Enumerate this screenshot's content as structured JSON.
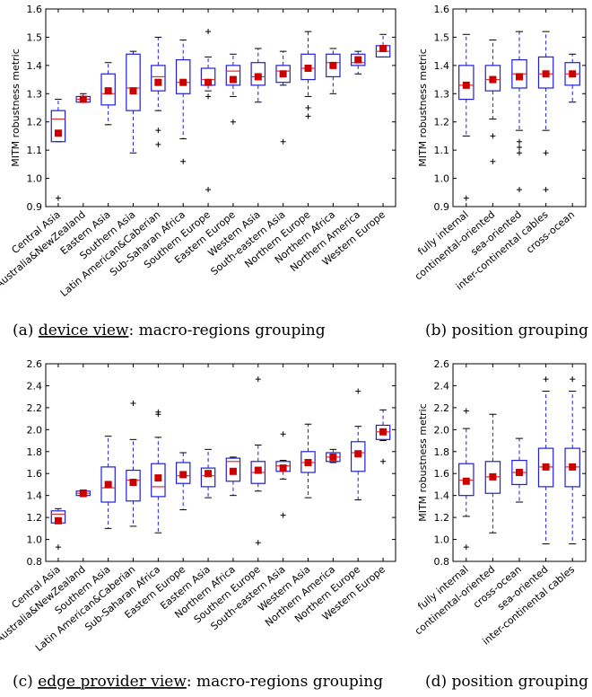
{
  "captions": {
    "a_prefix": "(a) ",
    "a_underlined": "device view",
    "a_rest": ": macro-regions grouping",
    "b": "(b) position grouping",
    "c_prefix": "(c) ",
    "c_underlined": "edge provider view",
    "c_rest": ": macro-regions grouping",
    "d": "(d) position grouping"
  },
  "colors": {
    "box": "#1f1fd6",
    "median": "#e03030",
    "mean": "#cc0000",
    "axis": "#000000"
  },
  "chart_data": [
    {
      "id": "a",
      "type": "box",
      "ylabel": "MITM robustness metric",
      "ylim": [
        0.9,
        1.6
      ],
      "yticks": [
        0.9,
        1.0,
        1.1,
        1.2,
        1.3,
        1.4,
        1.5,
        1.6
      ],
      "categories": [
        "Central Asia",
        "Australia&NewZealand",
        "Eastern Asia",
        "Southern Asia",
        "Latin American&Caberian",
        "Sub-Saharan Africa",
        "Southern Europe",
        "Eastern Europe",
        "Western Asia",
        "South-eastern Asia",
        "Northern Europe",
        "Northern Africa",
        "Northern America",
        "Western Europe"
      ],
      "boxes": [
        {
          "wlo": 1.13,
          "q1": 1.13,
          "med": 1.21,
          "q3": 1.24,
          "whi": 1.28,
          "mean": 1.16,
          "out": [
            0.93
          ]
        },
        {
          "wlo": 1.27,
          "q1": 1.27,
          "med": 1.28,
          "q3": 1.29,
          "whi": 1.3,
          "mean": 1.28,
          "out": []
        },
        {
          "wlo": 1.19,
          "q1": 1.26,
          "med": 1.3,
          "q3": 1.37,
          "whi": 1.41,
          "mean": 1.31,
          "out": []
        },
        {
          "wlo": 1.09,
          "q1": 1.24,
          "med": 1.32,
          "q3": 1.44,
          "whi": 1.45,
          "mean": 1.31,
          "out": []
        },
        {
          "wlo": 1.24,
          "q1": 1.31,
          "med": 1.36,
          "q3": 1.4,
          "whi": 1.5,
          "mean": 1.34,
          "out": [
            1.17,
            1.12
          ]
        },
        {
          "wlo": 1.14,
          "q1": 1.3,
          "med": 1.34,
          "q3": 1.42,
          "whi": 1.49,
          "mean": 1.34,
          "out": [
            1.06
          ]
        },
        {
          "wlo": 1.31,
          "q1": 1.33,
          "med": 1.35,
          "q3": 1.39,
          "whi": 1.43,
          "mean": 1.34,
          "out": [
            1.52,
            1.29,
            0.96
          ]
        },
        {
          "wlo": 1.29,
          "q1": 1.33,
          "med": 1.38,
          "q3": 1.4,
          "whi": 1.44,
          "mean": 1.35,
          "out": [
            1.2
          ]
        },
        {
          "wlo": 1.27,
          "q1": 1.33,
          "med": 1.36,
          "q3": 1.41,
          "whi": 1.46,
          "mean": 1.36,
          "out": []
        },
        {
          "wlo": 1.33,
          "q1": 1.34,
          "med": 1.38,
          "q3": 1.4,
          "whi": 1.45,
          "mean": 1.37,
          "out": [
            1.13
          ]
        },
        {
          "wlo": 1.29,
          "q1": 1.35,
          "med": 1.39,
          "q3": 1.44,
          "whi": 1.52,
          "mean": 1.39,
          "out": [
            1.25,
            1.22
          ]
        },
        {
          "wlo": 1.3,
          "q1": 1.36,
          "med": 1.41,
          "q3": 1.44,
          "whi": 1.46,
          "mean": 1.4,
          "out": []
        },
        {
          "wlo": 1.37,
          "q1": 1.4,
          "med": 1.41,
          "q3": 1.44,
          "whi": 1.45,
          "mean": 1.42,
          "out": []
        },
        {
          "wlo": 1.43,
          "q1": 1.43,
          "med": 1.45,
          "q3": 1.47,
          "whi": 1.51,
          "mean": 1.46,
          "out": []
        }
      ]
    },
    {
      "id": "b",
      "type": "box",
      "ylabel": "MITM robustness metric",
      "ylim": [
        0.9,
        1.6
      ],
      "yticks": [
        0.9,
        1.0,
        1.1,
        1.2,
        1.3,
        1.4,
        1.5,
        1.6
      ],
      "categories": [
        "fully internal",
        "continental-oriented",
        "sea-oriented",
        "inter-continental cables",
        "cross-ocean"
      ],
      "boxes": [
        {
          "wlo": 1.15,
          "q1": 1.28,
          "med": 1.33,
          "q3": 1.4,
          "whi": 1.51,
          "mean": 1.33,
          "out": [
            0.93
          ]
        },
        {
          "wlo": 1.21,
          "q1": 1.31,
          "med": 1.35,
          "q3": 1.4,
          "whi": 1.49,
          "mean": 1.35,
          "out": [
            1.15,
            1.06
          ]
        },
        {
          "wlo": 1.17,
          "q1": 1.32,
          "med": 1.37,
          "q3": 1.42,
          "whi": 1.52,
          "mean": 1.36,
          "out": [
            1.13,
            1.11,
            1.09,
            0.96
          ]
        },
        {
          "wlo": 1.17,
          "q1": 1.32,
          "med": 1.37,
          "q3": 1.43,
          "whi": 1.52,
          "mean": 1.37,
          "out": [
            1.09,
            0.96
          ]
        },
        {
          "wlo": 1.27,
          "q1": 1.33,
          "med": 1.37,
          "q3": 1.41,
          "whi": 1.44,
          "mean": 1.37,
          "out": []
        }
      ]
    },
    {
      "id": "c",
      "type": "box",
      "ylabel": "",
      "ylim": [
        0.8,
        2.6
      ],
      "yticks": [
        0.8,
        1.0,
        1.2,
        1.4,
        1.6,
        1.8,
        2.0,
        2.2,
        2.4,
        2.6
      ],
      "categories": [
        "Central Asia",
        "Australia&NewZealand",
        "Southern Asia",
        "Latin American&Caberian",
        "Sub-Saharan Africa",
        "Eastern Europe",
        "Eastern Asia",
        "Northern Africa",
        "Southern Europe",
        "South-eastern Asia",
        "Western Asia",
        "Northern America",
        "Northern Europe",
        "Western Europe"
      ],
      "boxes": [
        {
          "wlo": 1.15,
          "q1": 1.15,
          "med": 1.23,
          "q3": 1.26,
          "whi": 1.28,
          "mean": 1.17,
          "out": [
            0.93
          ]
        },
        {
          "wlo": 1.39,
          "q1": 1.4,
          "med": 1.42,
          "q3": 1.44,
          "whi": 1.45,
          "mean": 1.42,
          "out": []
        },
        {
          "wlo": 1.1,
          "q1": 1.34,
          "med": 1.47,
          "q3": 1.66,
          "whi": 1.94,
          "mean": 1.5,
          "out": []
        },
        {
          "wlo": 1.12,
          "q1": 1.35,
          "med": 1.54,
          "q3": 1.63,
          "whi": 1.91,
          "mean": 1.52,
          "out": [
            2.24
          ]
        },
        {
          "wlo": 1.06,
          "q1": 1.39,
          "med": 1.48,
          "q3": 1.69,
          "whi": 1.93,
          "mean": 1.56,
          "out": [
            2.16,
            2.14
          ]
        },
        {
          "wlo": 1.27,
          "q1": 1.51,
          "med": 1.58,
          "q3": 1.7,
          "whi": 1.79,
          "mean": 1.59,
          "out": []
        },
        {
          "wlo": 1.38,
          "q1": 1.48,
          "med": 1.58,
          "q3": 1.65,
          "whi": 1.82,
          "mean": 1.6,
          "out": []
        },
        {
          "wlo": 1.4,
          "q1": 1.53,
          "med": 1.71,
          "q3": 1.74,
          "whi": 1.75,
          "mean": 1.62,
          "out": []
        },
        {
          "wlo": 1.44,
          "q1": 1.51,
          "med": 1.61,
          "q3": 1.71,
          "whi": 1.86,
          "mean": 1.63,
          "out": [
            2.46,
            0.97
          ]
        },
        {
          "wlo": 1.55,
          "q1": 1.62,
          "med": 1.67,
          "q3": 1.71,
          "whi": 1.72,
          "mean": 1.65,
          "out": [
            1.96,
            1.22
          ]
        },
        {
          "wlo": 1.38,
          "q1": 1.61,
          "med": 1.7,
          "q3": 1.8,
          "whi": 2.05,
          "mean": 1.7,
          "out": []
        },
        {
          "wlo": 1.7,
          "q1": 1.71,
          "med": 1.75,
          "q3": 1.79,
          "whi": 1.82,
          "mean": 1.75,
          "out": []
        },
        {
          "wlo": 1.36,
          "q1": 1.62,
          "med": 1.79,
          "q3": 1.89,
          "whi": 2.03,
          "mean": 1.78,
          "out": [
            2.35
          ]
        },
        {
          "wlo": 1.9,
          "q1": 1.91,
          "med": 1.98,
          "q3": 2.04,
          "whi": 2.18,
          "mean": 1.98,
          "out": [
            1.71
          ]
        }
      ]
    },
    {
      "id": "d",
      "type": "box",
      "ylabel": "MITM robustness metric",
      "ylim": [
        0.8,
        2.6
      ],
      "yticks": [
        0.8,
        1.0,
        1.2,
        1.4,
        1.6,
        1.8,
        2.0,
        2.2,
        2.4,
        2.6
      ],
      "categories": [
        "fully internal",
        "continental-oriented",
        "cross-ocean",
        "sea-oriented",
        "inter-continental cables"
      ],
      "boxes": [
        {
          "wlo": 1.21,
          "q1": 1.4,
          "med": 1.54,
          "q3": 1.69,
          "whi": 2.01,
          "mean": 1.53,
          "out": [
            2.17,
            0.93
          ]
        },
        {
          "wlo": 1.06,
          "q1": 1.42,
          "med": 1.57,
          "q3": 1.71,
          "whi": 2.14,
          "mean": 1.57,
          "out": []
        },
        {
          "wlo": 1.34,
          "q1": 1.5,
          "med": 1.61,
          "q3": 1.72,
          "whi": 1.92,
          "mean": 1.61,
          "out": []
        },
        {
          "wlo": 0.96,
          "q1": 1.48,
          "med": 1.66,
          "q3": 1.83,
          "whi": 2.35,
          "mean": 1.66,
          "out": [
            2.46
          ]
        },
        {
          "wlo": 0.96,
          "q1": 1.48,
          "med": 1.66,
          "q3": 1.83,
          "whi": 2.35,
          "mean": 1.66,
          "out": [
            2.46
          ]
        }
      ]
    }
  ]
}
